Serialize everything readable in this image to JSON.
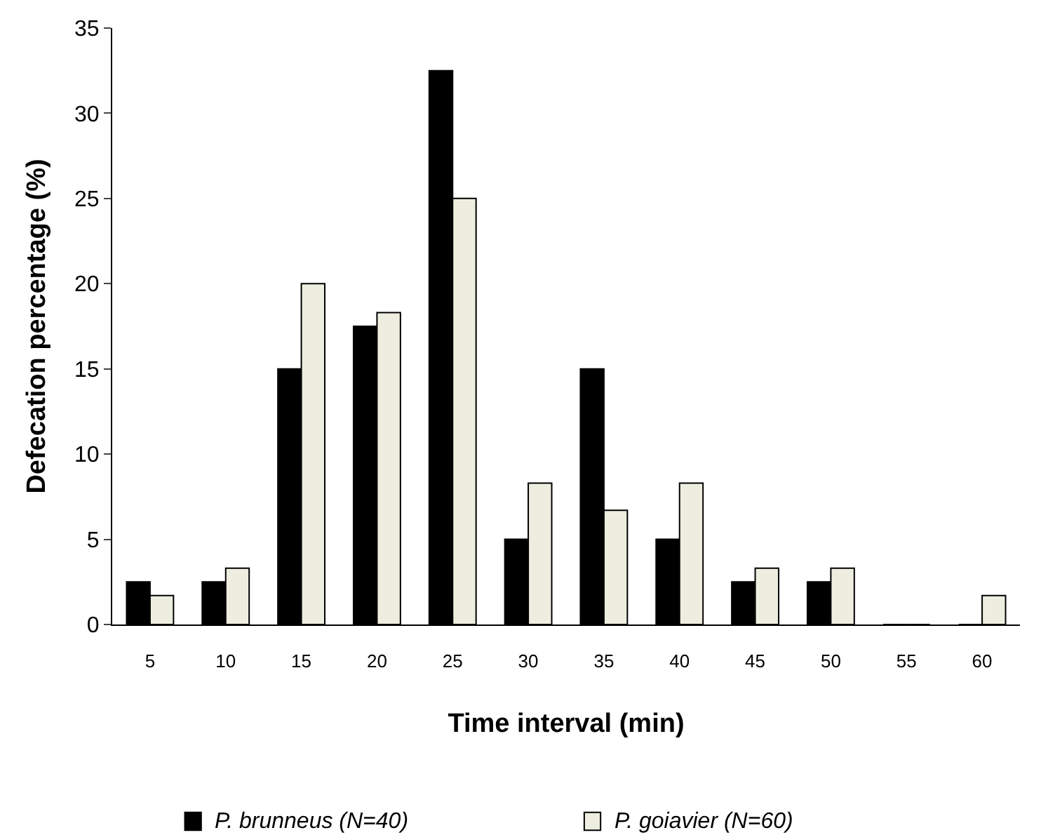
{
  "chart_data": {
    "type": "bar",
    "xlabel": "Time interval (min)",
    "ylabel": "Defecation percentage (%)",
    "categories": [
      "5",
      "10",
      "15",
      "20",
      "25",
      "30",
      "35",
      "40",
      "45",
      "50",
      "55",
      "60"
    ],
    "series": [
      {
        "name": "P. brunneus (N=40)",
        "color": "#000000",
        "values": [
          2.5,
          2.5,
          15,
          17.5,
          32.5,
          5,
          15,
          5,
          2.5,
          2.5,
          0,
          0
        ]
      },
      {
        "name": "P. goiavier (N=60)",
        "color": "#eeeee0",
        "values": [
          1.7,
          3.3,
          20,
          18.3,
          25,
          8.3,
          6.7,
          8.3,
          3.3,
          3.3,
          0,
          1.7
        ]
      }
    ],
    "ylim": [
      0,
      35
    ],
    "yticks": [
      0,
      5,
      10,
      15,
      20,
      25,
      30,
      35
    ],
    "legend": "bottom"
  }
}
